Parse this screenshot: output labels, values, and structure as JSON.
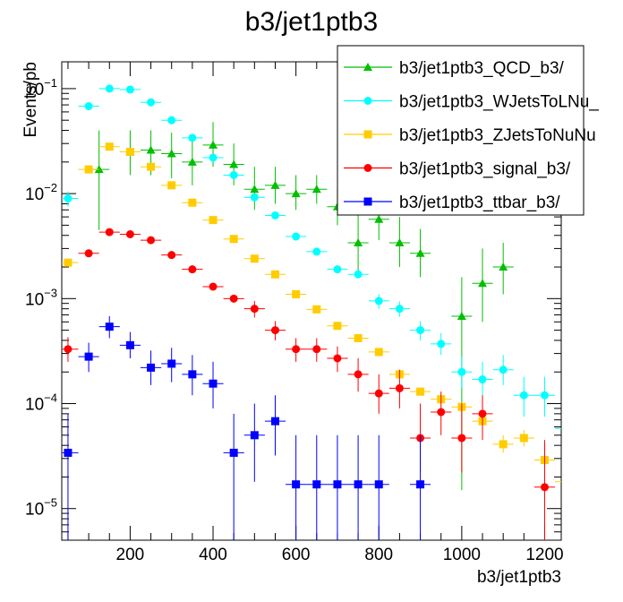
{
  "chart_data": {
    "type": "scatter",
    "title": "b3/jet1ptb3",
    "xlabel": "b3/jet1ptb3",
    "ylabel": "Events/pb",
    "xlim": [
      35,
      1240
    ],
    "ylim": [
      5e-06,
      0.18
    ],
    "yscale": "log",
    "grid": false,
    "legend_placement": "top-right",
    "x_ticks": [
      "200",
      "400",
      "600",
      "800",
      "1000",
      "1200"
    ],
    "y_ticks": [
      "10−5",
      "10−4",
      "10−3",
      "10−2",
      "10−1"
    ],
    "series": [
      {
        "name": "b3/jet1ptb3_QCD_b3/",
        "color": "#00bf00",
        "marker": "triangle",
        "points": [
          {
            "x": 125,
            "y": 0.017,
            "lo": 0.0045,
            "hi": 0.04
          },
          {
            "x": 200,
            "y": 0.025,
            "lo": 0.015,
            "hi": 0.04
          },
          {
            "x": 250,
            "y": 0.026,
            "lo": 0.015,
            "hi": 0.04
          },
          {
            "x": 300,
            "y": 0.024,
            "lo": 0.014,
            "hi": 0.038
          },
          {
            "x": 350,
            "y": 0.02,
            "lo": 0.012,
            "hi": 0.034
          },
          {
            "x": 400,
            "y": 0.029,
            "lo": 0.018,
            "hi": 0.048
          },
          {
            "x": 450,
            "y": 0.019,
            "lo": 0.012,
            "hi": 0.03
          },
          {
            "x": 500,
            "y": 0.011,
            "lo": 0.007,
            "hi": 0.018
          },
          {
            "x": 550,
            "y": 0.012,
            "lo": 0.008,
            "hi": 0.018
          },
          {
            "x": 600,
            "y": 0.01,
            "lo": 0.007,
            "hi": 0.015
          },
          {
            "x": 650,
            "y": 0.011,
            "lo": 0.008,
            "hi": 0.015
          },
          {
            "x": 700,
            "y": 0.0075,
            "lo": 0.005,
            "hi": 0.011
          },
          {
            "x": 750,
            "y": 0.0034,
            "lo": 0.0018,
            "hi": 0.0062
          },
          {
            "x": 800,
            "y": 0.0057,
            "lo": 0.0036,
            "hi": 0.009
          },
          {
            "x": 850,
            "y": 0.0034,
            "lo": 0.002,
            "hi": 0.006
          },
          {
            "x": 900,
            "y": 0.0027,
            "lo": 0.0016,
            "hi": 0.0046
          },
          {
            "x": 1000,
            "y": 0.00068,
            "lo": 1.5e-05,
            "hi": 0.0016
          },
          {
            "x": 1050,
            "y": 0.0014,
            "lo": 0.0006,
            "hi": 0.003
          },
          {
            "x": 1100,
            "y": 0.002,
            "lo": 0.0011,
            "hi": 0.0034
          }
        ]
      },
      {
        "name": "b3/jet1ptb3_WJetsToLNu_",
        "color": "#00ffff",
        "marker": "circle",
        "points": [
          {
            "x": 50,
            "y": 0.009,
            "lo": 0.0075,
            "hi": 0.0105
          },
          {
            "x": 100,
            "y": 0.068
          },
          {
            "x": 150,
            "y": 0.1
          },
          {
            "x": 200,
            "y": 0.098
          },
          {
            "x": 250,
            "y": 0.074
          },
          {
            "x": 300,
            "y": 0.05
          },
          {
            "x": 350,
            "y": 0.034
          },
          {
            "x": 400,
            "y": 0.022
          },
          {
            "x": 450,
            "y": 0.015
          },
          {
            "x": 500,
            "y": 0.0092
          },
          {
            "x": 550,
            "y": 0.0062
          },
          {
            "x": 600,
            "y": 0.0039
          },
          {
            "x": 650,
            "y": 0.0028
          },
          {
            "x": 700,
            "y": 0.0019
          },
          {
            "x": 750,
            "y": 0.0017
          },
          {
            "x": 800,
            "y": 0.00095,
            "lo": 0.0008,
            "hi": 0.0011
          },
          {
            "x": 850,
            "y": 0.0008,
            "lo": 0.00067,
            "hi": 0.00094
          },
          {
            "x": 900,
            "y": 0.0005,
            "lo": 0.0004,
            "hi": 0.00061
          },
          {
            "x": 950,
            "y": 0.00037,
            "lo": 0.00029,
            "hi": 0.00047
          },
          {
            "x": 1000,
            "y": 0.0002,
            "lo": 0.00014,
            "hi": 0.00028
          },
          {
            "x": 1050,
            "y": 0.00017,
            "lo": 0.00011,
            "hi": 0.00025
          },
          {
            "x": 1100,
            "y": 0.00021,
            "lo": 0.00015,
            "hi": 0.00029
          },
          {
            "x": 1150,
            "y": 0.00012,
            "lo": 7.5e-05,
            "hi": 0.00018
          },
          {
            "x": 1200,
            "y": 0.00012,
            "lo": 7.5e-05,
            "hi": 0.00018
          },
          {
            "x": 1250,
            "y": 5.8e-05,
            "lo": 3e-05,
            "hi": 0.00011
          }
        ]
      },
      {
        "name": "b3/jet1ptb3_ZJetsToNuNu",
        "color": "#ffcc00",
        "marker": "square",
        "points": [
          {
            "x": 50,
            "y": 0.0022
          },
          {
            "x": 100,
            "y": 0.017
          },
          {
            "x": 150,
            "y": 0.028
          },
          {
            "x": 200,
            "y": 0.025
          },
          {
            "x": 250,
            "y": 0.018
          },
          {
            "x": 300,
            "y": 0.012
          },
          {
            "x": 350,
            "y": 0.0082
          },
          {
            "x": 400,
            "y": 0.0056
          },
          {
            "x": 450,
            "y": 0.0037
          },
          {
            "x": 500,
            "y": 0.0024
          },
          {
            "x": 550,
            "y": 0.0017
          },
          {
            "x": 600,
            "y": 0.0011
          },
          {
            "x": 650,
            "y": 0.00079
          },
          {
            "x": 700,
            "y": 0.00055
          },
          {
            "x": 750,
            "y": 0.00042
          },
          {
            "x": 800,
            "y": 0.00031
          },
          {
            "x": 850,
            "y": 0.00019
          },
          {
            "x": 900,
            "y": 0.00013
          },
          {
            "x": 950,
            "y": 0.00011
          },
          {
            "x": 1000,
            "y": 9.3e-05
          },
          {
            "x": 1050,
            "y": 6.8e-05,
            "lo": 5.8e-05,
            "hi": 8e-05
          },
          {
            "x": 1100,
            "y": 4.1e-05,
            "lo": 3.4e-05,
            "hi": 5e-05
          },
          {
            "x": 1150,
            "y": 4.7e-05,
            "lo": 3.9e-05,
            "hi": 5.6e-05
          },
          {
            "x": 1200,
            "y": 2.9e-05,
            "lo": 2.3e-05,
            "hi": 3.6e-05
          },
          {
            "x": 1250,
            "y": 1.8e-05,
            "lo": 1.3e-05,
            "hi": 2.4e-05
          }
        ]
      },
      {
        "name": "b3/jet1ptb3_signal_b3/",
        "color": "#ff0000",
        "marker": "circle",
        "points": [
          {
            "x": 50,
            "y": 0.00033,
            "lo": 0.00025,
            "hi": 0.00043
          },
          {
            "x": 100,
            "y": 0.0027
          },
          {
            "x": 150,
            "y": 0.0043
          },
          {
            "x": 200,
            "y": 0.0041
          },
          {
            "x": 250,
            "y": 0.0036
          },
          {
            "x": 300,
            "y": 0.0026
          },
          {
            "x": 350,
            "y": 0.0019
          },
          {
            "x": 400,
            "y": 0.0013
          },
          {
            "x": 450,
            "y": 0.001
          },
          {
            "x": 500,
            "y": 0.0008,
            "lo": 0.00066,
            "hi": 0.00095
          },
          {
            "x": 550,
            "y": 0.0005,
            "lo": 0.0004,
            "hi": 0.00061
          },
          {
            "x": 600,
            "y": 0.00033,
            "lo": 0.00025,
            "hi": 0.00042
          },
          {
            "x": 650,
            "y": 0.00033,
            "lo": 0.00025,
            "hi": 0.00042
          },
          {
            "x": 700,
            "y": 0.00027,
            "lo": 0.0002,
            "hi": 0.00035
          },
          {
            "x": 750,
            "y": 0.00019,
            "lo": 0.00013,
            "hi": 0.00027
          },
          {
            "x": 800,
            "y": 0.000125,
            "lo": 8e-05,
            "hi": 0.00019
          },
          {
            "x": 850,
            "y": 0.00014,
            "lo": 9e-05,
            "hi": 0.00021
          },
          {
            "x": 900,
            "y": 4.7e-05,
            "lo": 2.2e-05,
            "hi": 0.0001
          },
          {
            "x": 950,
            "y": 8.3e-05,
            "lo": 5e-05,
            "hi": 0.00013
          },
          {
            "x": 1000,
            "y": 4.7e-05,
            "lo": 2.2e-05,
            "hi": 0.0001
          },
          {
            "x": 1050,
            "y": 8e-05,
            "lo": 4.5e-05,
            "hi": 0.00012
          },
          {
            "x": 1200,
            "y": 1.6e-05,
            "lo": 5e-06,
            "hi": 4.5e-05
          }
        ]
      },
      {
        "name": "b3/jet1ptb3_ttbar_b3/",
        "color": "#0000ff",
        "marker": "square",
        "points": [
          {
            "x": 50,
            "y": 3.4e-05,
            "lo": 5e-06,
            "hi": 8e-05
          },
          {
            "x": 100,
            "y": 0.00028,
            "lo": 0.0002,
            "hi": 0.00038
          },
          {
            "x": 150,
            "y": 0.00054,
            "lo": 0.00042,
            "hi": 0.00068
          },
          {
            "x": 200,
            "y": 0.00036,
            "lo": 0.00027,
            "hi": 0.00048
          },
          {
            "x": 250,
            "y": 0.00022,
            "lo": 0.00015,
            "hi": 0.00032
          },
          {
            "x": 300,
            "y": 0.00024,
            "lo": 0.00016,
            "hi": 0.00034
          },
          {
            "x": 350,
            "y": 0.00019,
            "lo": 0.00012,
            "hi": 0.00029
          },
          {
            "x": 400,
            "y": 0.000155,
            "lo": 9e-05,
            "hi": 0.00025
          },
          {
            "x": 450,
            "y": 3.4e-05,
            "lo": 5e-06,
            "hi": 8e-05
          },
          {
            "x": 500,
            "y": 5e-05,
            "lo": 1.8e-05,
            "hi": 0.0001
          },
          {
            "x": 550,
            "y": 6.8e-05,
            "lo": 3.2e-05,
            "hi": 0.00012
          },
          {
            "x": 600,
            "y": 1.7e-05,
            "lo": 5e-06,
            "hi": 5e-05
          },
          {
            "x": 650,
            "y": 1.7e-05,
            "lo": 5e-06,
            "hi": 5e-05
          },
          {
            "x": 700,
            "y": 1.7e-05,
            "lo": 5e-06,
            "hi": 5e-05
          },
          {
            "x": 750,
            "y": 1.7e-05,
            "lo": 5e-06,
            "hi": 5e-05
          },
          {
            "x": 800,
            "y": 1.7e-05,
            "lo": 5e-06,
            "hi": 5e-05
          },
          {
            "x": 900,
            "y": 1.7e-05,
            "lo": 5e-06,
            "hi": 5e-05
          }
        ]
      }
    ]
  }
}
